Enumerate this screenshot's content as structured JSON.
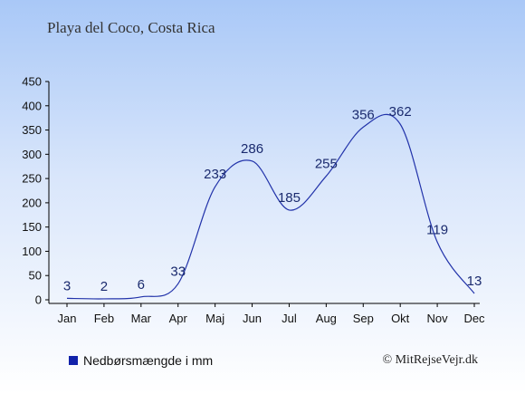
{
  "title": "Playa del Coco, Costa Rica",
  "legend_label": "Nedbørsmængde i mm",
  "credit": "© MitRejseVejr.dk",
  "colors": {
    "line": "#2233aa",
    "label": "#1a2a6e",
    "legend": "#1122aa"
  },
  "chart_data": {
    "type": "line",
    "categories": [
      "Jan",
      "Feb",
      "Mar",
      "Apr",
      "Maj",
      "Jun",
      "Jul",
      "Aug",
      "Sep",
      "Okt",
      "Nov",
      "Dec"
    ],
    "series": [
      {
        "name": "Nedbørsmængde i mm",
        "values": [
          3,
          2,
          6,
          33,
          233,
          286,
          185,
          255,
          356,
          362,
          119,
          13
        ]
      }
    ],
    "ylim": [
      0,
      450
    ],
    "yticks": [
      0,
      50,
      100,
      150,
      200,
      250,
      300,
      350,
      400,
      450
    ],
    "grid": false,
    "legend_position": "bottom-left"
  }
}
